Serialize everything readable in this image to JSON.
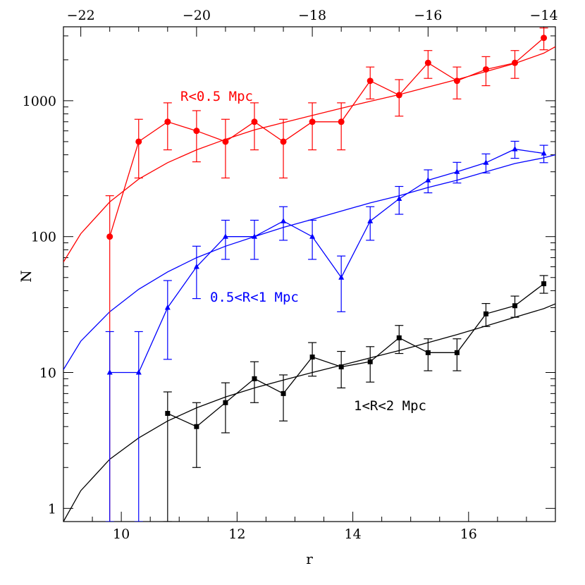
{
  "chart_data": {
    "type": "scatter",
    "xlabel": "r",
    "ylabel": "N",
    "xlim": [
      9.0,
      17.5
    ],
    "ylim": [
      0.8,
      3500
    ],
    "y_scale": "log",
    "x_ticks": [
      10,
      12,
      14,
      16
    ],
    "y_ticks": [
      1,
      10,
      100,
      1000
    ],
    "x_tick_labels": [
      "10",
      "12",
      "14",
      "16"
    ],
    "y_tick_labels": [
      "1",
      "10",
      "100",
      "1000"
    ],
    "top_axis": {
      "ticks": [
        -22,
        -20,
        -18,
        -16,
        -14
      ],
      "tick_labels": [
        "−22",
        "−20",
        "−18",
        "−16",
        "−14"
      ]
    },
    "grid": false,
    "series": [
      {
        "name": "R<0.5 Mpc",
        "color": "#ff0000",
        "marker": "circle",
        "x": [
          9.8,
          10.3,
          10.8,
          11.3,
          11.8,
          12.3,
          12.8,
          13.3,
          13.8,
          14.3,
          14.8,
          15.3,
          15.8,
          16.3,
          16.8,
          17.3
        ],
        "y": [
          100,
          500,
          700,
          600,
          500,
          700,
          500,
          700,
          700,
          1400,
          1100,
          1900,
          1400,
          1700,
          1900,
          2900
        ],
        "y_err_low": [
          99.2,
          230,
          265,
          245,
          230,
          265,
          230,
          265,
          265,
          370,
          330,
          440,
          370,
          410,
          440,
          530
        ],
        "y_err_high": [
          100,
          230,
          265,
          245,
          230,
          265,
          230,
          265,
          265,
          370,
          330,
          440,
          370,
          410,
          440,
          530
        ],
        "model": {
          "x": [
            9.0,
            9.3,
            9.8,
            10.3,
            10.8,
            11.3,
            11.8,
            12.3,
            12.8,
            13.3,
            13.8,
            14.3,
            14.8,
            15.3,
            15.8,
            16.3,
            16.8,
            17.3,
            17.5
          ],
          "y": [
            65,
            105,
            180,
            265,
            350,
            435,
            520,
            610,
            690,
            780,
            880,
            990,
            1110,
            1260,
            1430,
            1640,
            1880,
            2240,
            2500
          ]
        }
      },
      {
        "name": "0.5<R<1 Mpc",
        "color": "#0000ff",
        "marker": "triangle",
        "x": [
          9.8,
          10.3,
          10.8,
          11.3,
          11.8,
          12.3,
          12.8,
          13.3,
          13.8,
          14.3,
          14.8,
          15.3,
          15.8,
          16.3,
          16.8,
          17.3
        ],
        "y": [
          10,
          10,
          30,
          60,
          100,
          100,
          130,
          100,
          50,
          130,
          190,
          260,
          300,
          350,
          440,
          410
        ],
        "y_err_low": [
          9.2,
          9.2,
          17.5,
          25,
          32,
          32,
          36,
          32,
          22,
          36,
          44,
          50,
          52,
          56,
          63,
          60
        ],
        "y_err_high": [
          10,
          10,
          17.5,
          25,
          32,
          32,
          36,
          32,
          22,
          36,
          44,
          50,
          52,
          56,
          63,
          60
        ],
        "model": {
          "x": [
            9.0,
            9.3,
            9.8,
            10.3,
            10.8,
            11.3,
            11.8,
            12.3,
            12.8,
            13.3,
            13.8,
            14.3,
            14.8,
            15.3,
            15.8,
            16.3,
            16.8,
            17.3,
            17.5
          ],
          "y": [
            10.5,
            17,
            28,
            41,
            55,
            70,
            85,
            100,
            117,
            134,
            154,
            177,
            200,
            230,
            260,
            300,
            345,
            380,
            400
          ]
        }
      },
      {
        "name": "1<R<2 Mpc",
        "color": "#000000",
        "marker": "square",
        "x": [
          10.8,
          11.3,
          11.8,
          12.3,
          12.8,
          13.3,
          13.8,
          14.3,
          14.8,
          15.3,
          15.8,
          16.3,
          16.8,
          17.3
        ],
        "y": [
          5,
          4,
          6,
          9,
          7,
          13,
          11,
          12,
          18,
          14,
          14,
          27,
          31,
          45
        ],
        "y_err_low": [
          4.2,
          2,
          2.4,
          3,
          2.6,
          3.6,
          3.3,
          3.5,
          4.2,
          3.7,
          3.7,
          5.2,
          5.5,
          6.7
        ],
        "y_err_high": [
          2.2,
          2,
          2.4,
          3,
          2.6,
          3.6,
          3.3,
          3.5,
          4.2,
          3.7,
          3.7,
          5.2,
          5.5,
          6.7
        ],
        "model": {
          "x": [
            9.0,
            9.3,
            9.8,
            10.3,
            10.8,
            11.3,
            11.8,
            12.3,
            12.8,
            13.3,
            13.8,
            14.3,
            14.8,
            15.3,
            15.8,
            16.3,
            16.8,
            17.3,
            17.5
          ],
          "y": [
            0.8,
            1.35,
            2.3,
            3.3,
            4.4,
            5.5,
            6.6,
            7.7,
            8.8,
            10.0,
            11.3,
            12.8,
            14.5,
            16.6,
            19.0,
            22.0,
            25.5,
            29.5,
            32
          ]
        }
      }
    ]
  }
}
